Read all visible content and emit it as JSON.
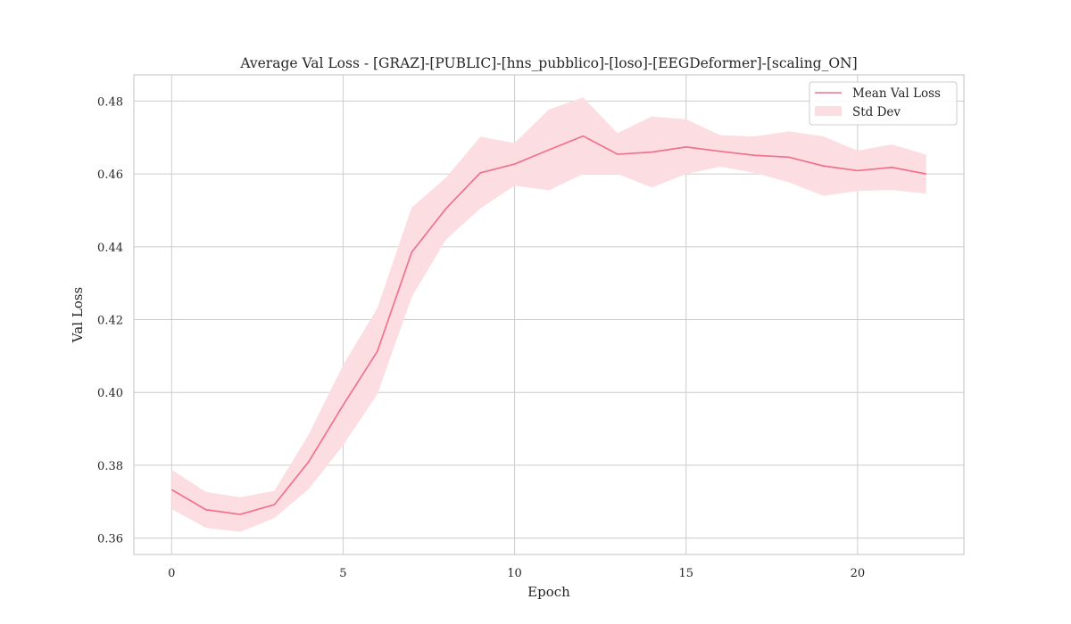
{
  "chart_data": {
    "type": "line",
    "title": "Average Val Loss - [GRAZ]-[PUBLIC]-[hns_pubblico]-[loso]-[EEGDeformer]-[scaling_ON]",
    "xlabel": "Epoch",
    "ylabel": "Val Loss",
    "xlim": [
      -1.1,
      23.1
    ],
    "ylim": [
      0.3555,
      0.4872
    ],
    "xticks": [
      0,
      5,
      10,
      15,
      20
    ],
    "xtick_labels": [
      "0",
      "5",
      "10",
      "15",
      "20"
    ],
    "yticks": [
      0.36,
      0.38,
      0.4,
      0.42,
      0.44,
      0.46,
      0.48
    ],
    "ytick_labels": [
      "0.36",
      "0.38",
      "0.40",
      "0.42",
      "0.44",
      "0.46",
      "0.48"
    ],
    "grid": true,
    "legend_position": "top-right",
    "x": [
      0,
      1,
      2,
      3,
      4,
      5,
      6,
      7,
      8,
      9,
      10,
      11,
      12,
      13,
      14,
      15,
      16,
      17,
      18,
      19,
      20,
      21,
      22
    ],
    "series": [
      {
        "name": "Mean Val Loss",
        "values": [
          0.3733,
          0.3678,
          0.3665,
          0.3692,
          0.381,
          0.3965,
          0.4113,
          0.4385,
          0.4505,
          0.4603,
          0.4627,
          0.4666,
          0.4704,
          0.4654,
          0.466,
          0.4674,
          0.4662,
          0.4651,
          0.4646,
          0.4622,
          0.4609,
          0.4618,
          0.46
        ],
        "color": "#f0728c"
      }
    ],
    "band": {
      "name": "Std Dev",
      "lower": [
        0.368,
        0.3628,
        0.3617,
        0.3655,
        0.3735,
        0.3855,
        0.3995,
        0.4262,
        0.442,
        0.4505,
        0.4568,
        0.4555,
        0.46,
        0.46,
        0.4563,
        0.46,
        0.462,
        0.4603,
        0.4577,
        0.454,
        0.4553,
        0.4556,
        0.4546
      ],
      "upper": [
        0.3788,
        0.3727,
        0.3712,
        0.373,
        0.3885,
        0.4075,
        0.4232,
        0.4508,
        0.459,
        0.4702,
        0.4685,
        0.4777,
        0.481,
        0.4712,
        0.4758,
        0.475,
        0.4706,
        0.4703,
        0.4717,
        0.4703,
        0.4664,
        0.4681,
        0.4653
      ],
      "color": "#fcdde2"
    }
  }
}
